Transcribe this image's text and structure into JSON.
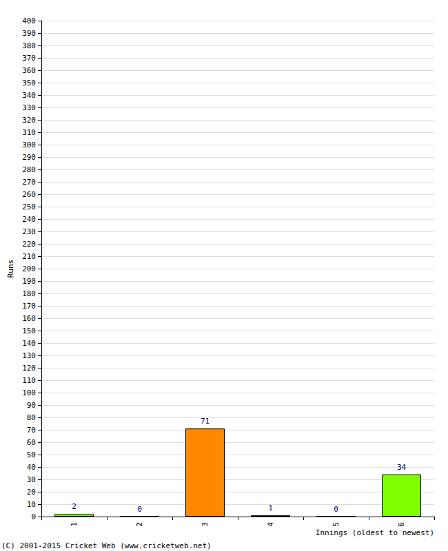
{
  "chart_data": {
    "type": "bar",
    "ylabel": "Runs",
    "xlabel": "Innings (oldest to newest)",
    "annotations": [
      "(C) 2001-2015 Cricket Web (www.cricketweb.net)"
    ],
    "categories": [
      "1",
      "2",
      "3",
      "4",
      "5",
      "6"
    ],
    "values": [
      2,
      0,
      71,
      1,
      0,
      34
    ],
    "colors": [
      "#80ff00",
      "#80ff00",
      "#ff8800",
      "#80ff00",
      "#80ff00",
      "#80ff00"
    ],
    "ylim": [
      0,
      400
    ],
    "yticks": [
      0,
      10,
      20,
      30,
      40,
      50,
      60,
      70,
      80,
      90,
      100,
      110,
      120,
      130,
      140,
      150,
      160,
      170,
      180,
      190,
      200,
      210,
      220,
      230,
      240,
      250,
      260,
      270,
      280,
      290,
      300,
      310,
      320,
      330,
      340,
      350,
      360,
      370,
      380,
      390,
      400
    ],
    "grid": true,
    "data_labels": true
  }
}
